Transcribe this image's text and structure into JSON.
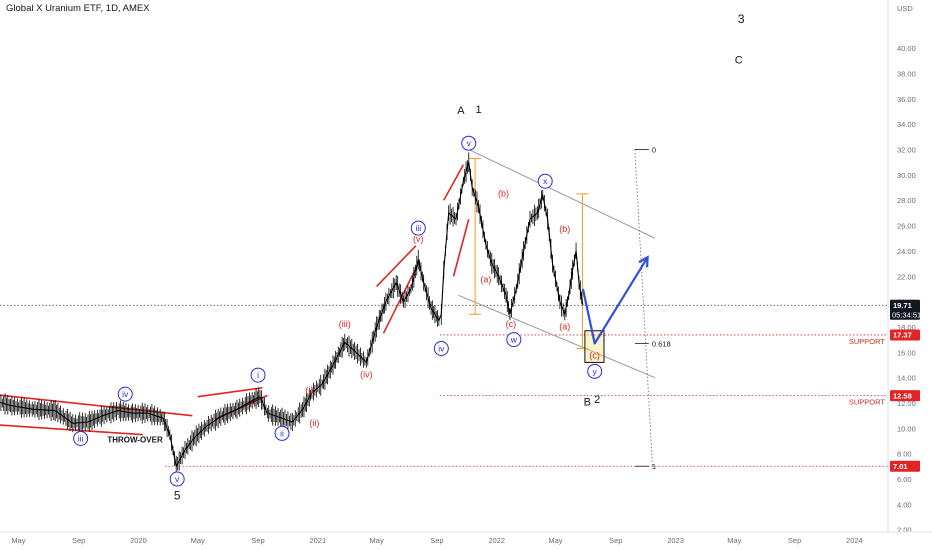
{
  "header": {
    "title": "Global X Uranium ETF, 1D, AMEX"
  },
  "price_axis": {
    "unit": "USD",
    "current_price": "19.71",
    "countdown": "05:34:51"
  },
  "colors": {
    "up_wave": "#e02525",
    "wave_label_blue": "#2a2ae0",
    "support": "#e02525",
    "channel": "#9a9a9a",
    "fib": "#f2a33a",
    "projection": "#2f4fe0",
    "price_bars": "#000000",
    "current_tag": "#131722"
  },
  "annotations": {
    "throw_over": "THROW-OVER",
    "support_1": "SUPPORT",
    "support_2": "SUPPORT",
    "fib_0": "0",
    "fib_0618": "0.618",
    "fib_1": "1"
  },
  "chart_data": {
    "type": "line",
    "title": "Global X Uranium ETF, 1D, AMEX",
    "xlabel": "",
    "ylabel": "USD",
    "ylim": [
      0.4,
      43.8
    ],
    "grid": false,
    "x_ticks": [
      {
        "label": "May",
        "date": "2019-05-01"
      },
      {
        "label": "Sep",
        "date": "2019-09-01"
      },
      {
        "label": "2020",
        "date": "2020-01-01"
      },
      {
        "label": "May",
        "date": "2020-05-01"
      },
      {
        "label": "Sep",
        "date": "2020-09-01"
      },
      {
        "label": "2021",
        "date": "2021-01-01"
      },
      {
        "label": "May",
        "date": "2021-05-01"
      },
      {
        "label": "Sep",
        "date": "2021-09-01"
      },
      {
        "label": "2022",
        "date": "2022-01-01"
      },
      {
        "label": "May",
        "date": "2022-05-01"
      },
      {
        "label": "Sep",
        "date": "2022-09-01"
      },
      {
        "label": "2023",
        "date": "2023-01-01"
      },
      {
        "label": "May",
        "date": "2023-05-01"
      },
      {
        "label": "Sep",
        "date": "2023-09-01"
      },
      {
        "label": "2024",
        "date": "2024-01-01"
      }
    ],
    "y_ticks": [
      2.0,
      4.0,
      6.0,
      8.0,
      10.0,
      12.0,
      14.0,
      16.0,
      18.0,
      20.0,
      22.0,
      24.0,
      26.0,
      28.0,
      30.0,
      32.0,
      34.0,
      36.0,
      38.0,
      40.0
    ],
    "y_tick_labels": [
      "2.00",
      "4.00",
      "6.00",
      "8.00",
      "10.00",
      "12.00",
      "14.00",
      "16.00",
      "18.00",
      "20.00",
      "22.00",
      "24.00",
      "26.00",
      "28.00",
      "30.00",
      "32.00",
      "34.00",
      "36.00",
      "38.00",
      "40.00"
    ],
    "series": [
      {
        "type": "line",
        "points": [
          [
            "2018-12-20",
            13.0
          ],
          [
            "2019-01-20",
            12.4
          ],
          [
            "2019-03-01",
            12.3
          ],
          [
            "2019-04-15",
            11.8
          ],
          [
            "2019-06-01",
            11.5
          ],
          [
            "2019-07-15",
            11.4
          ],
          [
            "2019-08-20",
            10.4
          ],
          [
            "2019-09-20",
            10.5
          ],
          [
            "2019-10-20",
            11.0
          ],
          [
            "2019-11-20",
            11.4
          ],
          [
            "2019-12-20",
            11.2
          ],
          [
            "2020-01-20",
            11.2
          ],
          [
            "2020-02-20",
            10.8
          ],
          [
            "2020-03-05",
            9.5
          ],
          [
            "2020-03-18",
            7.0
          ],
          [
            "2020-04-05",
            8.3
          ],
          [
            "2020-04-25",
            9.3
          ],
          [
            "2020-05-20",
            10.2
          ],
          [
            "2020-06-20",
            11.0
          ],
          [
            "2020-07-20",
            11.5
          ],
          [
            "2020-08-20",
            12.2
          ],
          [
            "2020-09-05",
            12.5
          ],
          [
            "2020-09-20",
            11.2
          ],
          [
            "2020-10-20",
            10.8
          ],
          [
            "2020-11-10",
            10.5
          ],
          [
            "2020-12-01",
            11.5
          ],
          [
            "2020-12-20",
            12.8
          ],
          [
            "2021-01-10",
            13.5
          ],
          [
            "2021-02-01",
            15.0
          ],
          [
            "2021-02-25",
            16.8
          ],
          [
            "2021-03-20",
            16.0
          ],
          [
            "2021-04-10",
            15.2
          ],
          [
            "2021-05-01",
            18.0
          ],
          [
            "2021-05-20",
            20.0
          ],
          [
            "2021-06-10",
            21.5
          ],
          [
            "2021-06-25",
            20.0
          ],
          [
            "2021-07-10",
            21.0
          ],
          [
            "2021-07-25",
            23.3
          ],
          [
            "2021-08-05",
            21.5
          ],
          [
            "2021-08-20",
            19.5
          ],
          [
            "2021-09-05",
            18.5
          ],
          [
            "2021-09-10",
            19.0
          ],
          [
            "2021-09-15",
            22.5
          ],
          [
            "2021-09-25",
            27.0
          ],
          [
            "2021-10-10",
            26.5
          ],
          [
            "2021-10-25",
            29.5
          ],
          [
            "2021-11-05",
            31.0
          ],
          [
            "2021-11-12",
            29.0
          ],
          [
            "2021-11-25",
            27.5
          ],
          [
            "2021-12-10",
            24.5
          ],
          [
            "2021-12-22",
            23.0
          ],
          [
            "2022-01-05",
            22.0
          ],
          [
            "2022-01-20",
            20.5
          ],
          [
            "2022-01-28",
            19.0
          ],
          [
            "2022-02-10",
            21.0
          ],
          [
            "2022-02-25",
            24.0
          ],
          [
            "2022-03-10",
            26.5
          ],
          [
            "2022-03-25",
            27.0
          ],
          [
            "2022-04-05",
            28.4
          ],
          [
            "2022-04-15",
            26.5
          ],
          [
            "2022-04-25",
            23.0
          ],
          [
            "2022-05-10",
            20.0
          ],
          [
            "2022-05-20",
            19.0
          ],
          [
            "2022-05-28",
            20.5
          ],
          [
            "2022-06-05",
            22.5
          ],
          [
            "2022-06-12",
            24.0
          ],
          [
            "2022-06-18",
            21.5
          ],
          [
            "2022-06-26",
            19.71
          ]
        ]
      }
    ],
    "support_levels": [
      {
        "value": 17.37,
        "label": "SUPPORT"
      },
      {
        "value": 12.58,
        "label": "SUPPORT"
      }
    ],
    "horizontal_markers": [
      7.01,
      19.71
    ],
    "fibonacci": [
      {
        "level": "0",
        "price": 32.0
      },
      {
        "level": "0.618",
        "price": 16.7
      },
      {
        "level": "1",
        "price": 7.01
      }
    ],
    "price_tags": [
      {
        "value": "19.71",
        "sub": "05:34:51",
        "color": "#131722"
      },
      {
        "value": "17.37",
        "color": "#e02525"
      },
      {
        "value": "12.58",
        "color": "#e02525"
      },
      {
        "value": "7.01",
        "color": "#e02525"
      }
    ],
    "wave_labels": [
      {
        "text": "iii",
        "date": "2019-09-05",
        "price": 9.2,
        "style": "circle-blue"
      },
      {
        "text": "iv",
        "date": "2019-12-05",
        "price": 12.7,
        "style": "circle-blue"
      },
      {
        "text": "v",
        "date": "2020-03-20",
        "price": 6.0,
        "style": "circle-blue"
      },
      {
        "text": "5",
        "date": "2020-03-20",
        "price": 4.4,
        "style": "black-lg"
      },
      {
        "text": "i",
        "date": "2020-09-01",
        "price": 14.2,
        "style": "circle-blue"
      },
      {
        "text": "ii",
        "date": "2020-10-20",
        "price": 9.6,
        "style": "circle-blue"
      },
      {
        "text": "(i)",
        "date": "2020-12-15",
        "price": 12.8,
        "style": "red"
      },
      {
        "text": "(ii)",
        "date": "2020-12-25",
        "price": 10.2,
        "style": "red"
      },
      {
        "text": "(iii)",
        "date": "2021-02-25",
        "price": 18.0,
        "style": "red"
      },
      {
        "text": "(iv)",
        "date": "2021-04-10",
        "price": 14.0,
        "style": "red"
      },
      {
        "text": "(v)",
        "date": "2021-07-25",
        "price": 24.7,
        "style": "red"
      },
      {
        "text": "iii",
        "date": "2021-07-25",
        "price": 25.8,
        "style": "circle-blue"
      },
      {
        "text": "iv",
        "date": "2021-09-10",
        "price": 16.3,
        "style": "circle-blue"
      },
      {
        "text": "v",
        "date": "2021-11-05",
        "price": 32.5,
        "style": "circle-blue"
      },
      {
        "text": "A",
        "date": "2021-10-20",
        "price": 34.8,
        "style": "black"
      },
      {
        "text": "1",
        "date": "2021-11-25",
        "price": 34.9,
        "style": "black"
      },
      {
        "text": "(a)",
        "date": "2021-12-10",
        "price": 21.5,
        "style": "red"
      },
      {
        "text": "(b)",
        "date": "2022-01-15",
        "price": 28.3,
        "style": "red"
      },
      {
        "text": "(c)",
        "date": "2022-01-30",
        "price": 18.0,
        "style": "red"
      },
      {
        "text": "w",
        "date": "2022-02-05",
        "price": 17.0,
        "style": "circle-blue"
      },
      {
        "text": "x",
        "date": "2022-04-10",
        "price": 29.5,
        "style": "circle-blue"
      },
      {
        "text": "(b)",
        "date": "2022-05-20",
        "price": 25.5,
        "style": "red"
      },
      {
        "text": "(a)",
        "date": "2022-05-20",
        "price": 17.8,
        "style": "red"
      },
      {
        "text": "(c)",
        "date": "2022-07-20",
        "price": 15.5,
        "style": "red"
      },
      {
        "text": "y",
        "date": "2022-07-20",
        "price": 14.5,
        "style": "circle-blue"
      },
      {
        "text": "B",
        "date": "2022-07-05",
        "price": 11.8,
        "style": "black"
      },
      {
        "text": "2",
        "date": "2022-07-25",
        "price": 12.0,
        "style": "black"
      },
      {
        "text": "3",
        "date": "2023-05-15",
        "price": 42.0,
        "style": "black-lg"
      },
      {
        "text": "C",
        "date": "2023-05-10",
        "price": 38.8,
        "style": "black"
      },
      {
        "text": "THROW-OVER",
        "date": "2019-12-25",
        "price": 8.9,
        "style": "black-bold"
      }
    ],
    "trend_lines": [
      {
        "from": [
          "2018-12-20",
          13.0
        ],
        "to": [
          "2020-04-20",
          11.0
        ],
        "color": "#e02525"
      },
      {
        "from": [
          "2018-12-20",
          10.5
        ],
        "to": [
          "2020-01-10",
          9.5
        ],
        "color": "#e02525"
      },
      {
        "from": [
          "2020-05-01",
          12.5
        ],
        "to": [
          "2020-09-10",
          13.2
        ],
        "color": "#e02525"
      },
      {
        "from": [
          "2020-06-05",
          10.7
        ],
        "to": [
          "2020-09-20",
          12.6
        ],
        "color": "#e02525"
      },
      {
        "from": [
          "2021-05-01",
          21.2
        ],
        "to": [
          "2021-07-20",
          24.4
        ],
        "color": "#e02525"
      },
      {
        "from": [
          "2021-05-15",
          17.5
        ],
        "to": [
          "2021-07-25",
          23.0
        ],
        "color": "#e02525"
      },
      {
        "from": [
          "2021-09-15",
          28.0
        ],
        "to": [
          "2021-10-25",
          30.8
        ],
        "color": "#e02525"
      },
      {
        "from": [
          "2021-10-05",
          22.0
        ],
        "to": [
          "2021-11-05",
          26.5
        ],
        "color": "#e02525"
      },
      {
        "from": [
          "2021-11-05",
          32.0
        ],
        "to": [
          "2022-11-20",
          25.0
        ],
        "color": "#9a9a9a"
      },
      {
        "from": [
          "2021-10-15",
          20.5
        ],
        "to": [
          "2022-11-20",
          14.0
        ],
        "color": "#9a9a9a"
      }
    ],
    "fib_verticals": [
      {
        "date": "2021-11-18",
        "top": 31.3,
        "bottom": 19.0,
        "color": "#f2a33a"
      },
      {
        "date": "2022-06-25",
        "top": 28.5,
        "bottom": 16.3,
        "color": "#f2a33a"
      }
    ],
    "fib_dotted": {
      "from": [
        "2022-10-10",
        32.0
      ],
      "to": [
        "2022-11-15",
        7.01
      ]
    },
    "projection": {
      "points": [
        [
          "2022-06-26",
          21.0
        ],
        [
          "2022-07-20",
          16.7
        ],
        [
          "2022-11-05",
          23.5
        ]
      ],
      "color": "#2f4fe0"
    },
    "target_box": {
      "from": [
        "2022-06-30",
        17.7
      ],
      "to": [
        "2022-08-08",
        15.2
      ],
      "color": "#f2d96b"
    }
  }
}
